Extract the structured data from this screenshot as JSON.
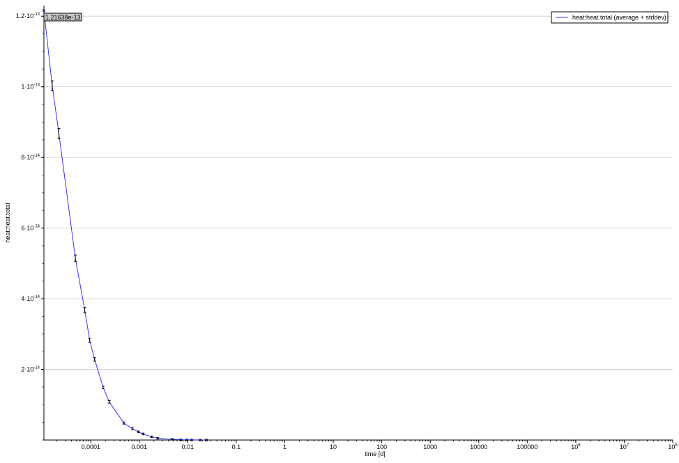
{
  "chart_data": {
    "type": "line",
    "xlabel": "time [d]",
    "ylabel": "heat:heat.total",
    "x_scale": "log",
    "xlim": [
      1.08e-05,
      100000000
    ],
    "ylim": [
      0,
      1.23e-13
    ],
    "x_ticks": [
      {
        "value": 0.0001,
        "label": "0.0001"
      },
      {
        "value": 0.001,
        "label": "0.001"
      },
      {
        "value": 0.01,
        "label": "0.01"
      },
      {
        "value": 0.1,
        "label": "0.1"
      },
      {
        "value": 1,
        "label": "1"
      },
      {
        "value": 10,
        "label": "10"
      },
      {
        "value": 100,
        "label": "100"
      },
      {
        "value": 1000,
        "label": "1000"
      },
      {
        "value": 10000,
        "label": "10000"
      },
      {
        "value": 100000,
        "label": "100000"
      },
      {
        "value": 1000000,
        "label": "10",
        "exp": "6"
      },
      {
        "value": 10000000,
        "label": "10",
        "exp": "7"
      },
      {
        "value": 100000000,
        "label": "10",
        "exp": "8"
      }
    ],
    "y_ticks": [
      {
        "value": 2e-14,
        "label": "2·10",
        "exp": "-14"
      },
      {
        "value": 4e-14,
        "label": "4·10",
        "exp": "-14"
      },
      {
        "value": 6e-14,
        "label": "6·10",
        "exp": "-14"
      },
      {
        "value": 8e-14,
        "label": "8·10",
        "exp": "-14"
      },
      {
        "value": 1e-13,
        "label": "1·10",
        "exp": "-13"
      },
      {
        "value": 1.2e-13,
        "label": "1.2·10",
        "exp": "-13"
      }
    ],
    "grid": {
      "horizontal": true,
      "vertical": false
    },
    "legend_position": "top-right",
    "readout": "1.21638e-13",
    "series": [
      {
        "name": "heat:heat.total (average + stddev)",
        "color": "#3333ff",
        "x": [
          1.08e-05,
          1.6e-05,
          2.2e-05,
          4.8e-05,
          7.5e-05,
          9.5e-05,
          0.00012,
          0.00018,
          0.00024,
          0.00048,
          0.00072,
          0.00096,
          0.0012,
          0.0018,
          0.0024,
          0.0048,
          0.0072,
          0.0096,
          0.012,
          0.018,
          0.024
        ],
        "y": [
          1.216e-13,
          1.003e-13,
          8.68e-14,
          5.15e-14,
          3.68e-14,
          2.82e-14,
          2.28e-14,
          1.49e-14,
          1.08e-14,
          4.8e-15,
          3.2e-15,
          2.3e-15,
          1.7e-15,
          9e-16,
          5e-16,
          2e-16,
          1e-16,
          6e-17,
          4e-17,
          2e-17,
          1e-17
        ],
        "stddev": [
          0,
          1.2e-15,
          1.2e-15,
          7e-16,
          5e-16,
          4e-16,
          3e-16,
          2e-16,
          1.5e-16,
          1e-16,
          8e-17,
          6e-17,
          5e-17,
          4e-17,
          3e-17,
          2e-17,
          1e-17,
          1e-17,
          1e-17,
          1e-17,
          1e-17
        ]
      }
    ]
  }
}
